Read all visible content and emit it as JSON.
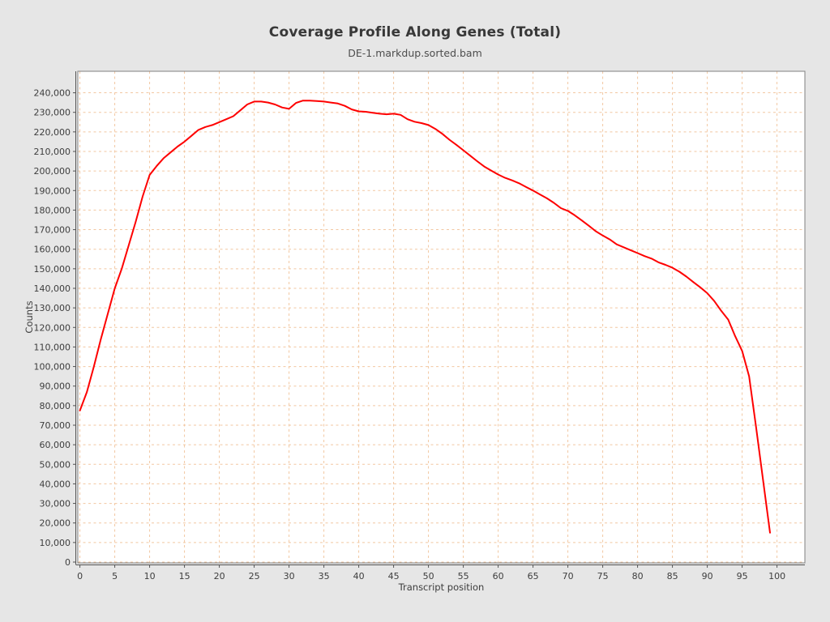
{
  "chart": {
    "title": "Coverage Profile Along Genes (Total)",
    "subtitle": "DE-1.markdup.sorted.bam"
  },
  "chart_data": {
    "type": "line",
    "title": "Coverage Profile Along Genes (Total)",
    "subtitle": "DE-1.markdup.sorted.bam",
    "xlabel": "Transcript position",
    "ylabel": "Counts",
    "xlim": [
      -0.3,
      104
    ],
    "ylim": [
      0,
      251000
    ],
    "x_tick_step": 5,
    "x_tick_max": 100,
    "y_tick_step": 10000,
    "y_tick_max": 240000,
    "grid": true,
    "legend_position": "none",
    "colors": {
      "line": "#fe0000",
      "grid": "#f2c7a1",
      "plot_background": "#ffffff",
      "figure_background": "#e6e6e6",
      "axis": "#545454",
      "plot_border": "#808080",
      "text": "#3d3d3d"
    },
    "series": [
      {
        "name": "DE-1.markdup.sorted.bam",
        "x": [
          0,
          1,
          2,
          3,
          4,
          5,
          6,
          7,
          8,
          9,
          10,
          11,
          12,
          13,
          14,
          15,
          16,
          17,
          18,
          19,
          20,
          21,
          22,
          23,
          24,
          25,
          26,
          27,
          28,
          29,
          30,
          31,
          32,
          33,
          34,
          35,
          36,
          37,
          38,
          39,
          40,
          41,
          42,
          43,
          44,
          45,
          46,
          47,
          48,
          49,
          50,
          51,
          52,
          53,
          54,
          55,
          56,
          57,
          58,
          59,
          60,
          61,
          62,
          63,
          64,
          65,
          66,
          67,
          68,
          69,
          70,
          71,
          72,
          73,
          74,
          75,
          76,
          77,
          78,
          79,
          80,
          81,
          82,
          83,
          84,
          85,
          86,
          87,
          88,
          89,
          90,
          91,
          92,
          93,
          94,
          95,
          96,
          97,
          98,
          99
        ],
        "values": [
          77500,
          87000,
          100000,
          114000,
          127000,
          140000,
          150000,
          162000,
          174000,
          187000,
          198000,
          202500,
          206500,
          209500,
          212500,
          215000,
          218000,
          221000,
          222500,
          223500,
          225000,
          226500,
          228000,
          231000,
          234000,
          235500,
          235500,
          235000,
          234000,
          232500,
          231800,
          234800,
          236000,
          236000,
          235800,
          235500,
          235000,
          234500,
          233300,
          231500,
          230500,
          230300,
          229800,
          229300,
          229000,
          229300,
          228700,
          226500,
          225200,
          224500,
          223500,
          221500,
          219000,
          216000,
          213400,
          210600,
          207800,
          205000,
          202300,
          200200,
          198200,
          196500,
          195200,
          193700,
          191800,
          190000,
          188000,
          186000,
          183700,
          181000,
          179600,
          177300,
          174700,
          172000,
          169200,
          167000,
          165000,
          162500,
          161000,
          159500,
          158000,
          156500,
          155200,
          153300,
          152000,
          150500,
          148500,
          146000,
          143200,
          140500,
          137500,
          133500,
          128500,
          124000,
          115500,
          108000,
          95000,
          69000,
          42000,
          15000
        ]
      }
    ]
  }
}
